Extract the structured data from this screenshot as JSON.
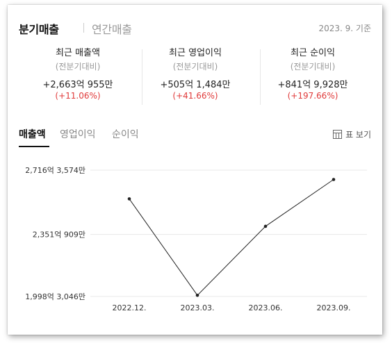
{
  "header": {
    "tab_active": "분기매출",
    "tab_inactive": "연간매출",
    "basis": "2023. 9. 기준"
  },
  "stats": [
    {
      "title": "최근 매출액",
      "sub": "(전분기대비)",
      "value": "+2,663억 955만",
      "change": "(+11.06%)"
    },
    {
      "title": "최근 영업이익",
      "sub": "(전분기대비)",
      "value": "+505억 1,484만",
      "change": "(+41.66%)"
    },
    {
      "title": "최근 순이익",
      "sub": "(전분기대비)",
      "value": "+841억 9,928만",
      "change": "(+197.66%)"
    }
  ],
  "chart_tabs": [
    "매출액",
    "영업이익",
    "순이익"
  ],
  "table_view_label": "표 보기",
  "icons": {
    "table": "table-grid-icon"
  },
  "colors": {
    "positive_change": "#e03a3a",
    "line": "#222222",
    "grid": "#e8e8e8"
  },
  "chart_data": {
    "type": "line",
    "categories": [
      "2022.12.",
      "2023.03.",
      "2023.06.",
      "2023.09."
    ],
    "values": [
      2553.0,
      2005.0,
      2397.0,
      2663.1
    ],
    "ylim": [
      1998.3046,
      2716.3574
    ],
    "y_ticks": [
      {
        "value": 2716.3574,
        "label": "2,716억 3,574만"
      },
      {
        "value": 2351.0909,
        "label": "2,351억 909만"
      },
      {
        "value": 1998.3046,
        "label": "1,998억 3,046만"
      }
    ],
    "grid": true,
    "legend": false
  }
}
